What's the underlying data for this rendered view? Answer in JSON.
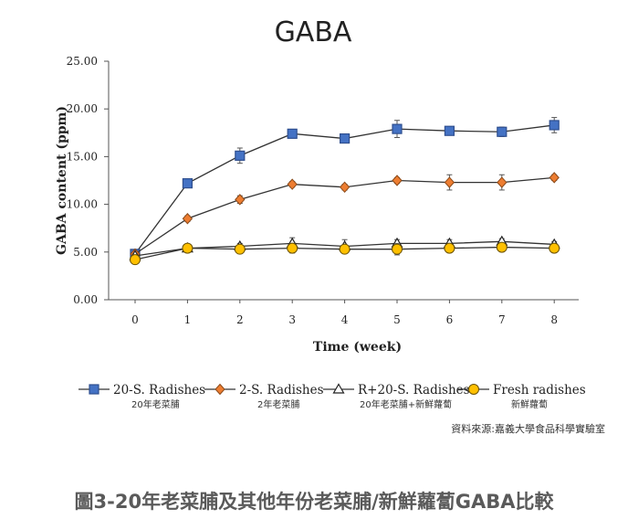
{
  "caption": "圖3-20年老菜脯及其他年份老菜脯/新鮮蘿蔔GABA比較",
  "chart_data": {
    "type": "line",
    "title": "GABA",
    "xlabel": "Time (week)",
    "ylabel": "GABA content (ppm)",
    "x": [
      0,
      1,
      2,
      3,
      4,
      5,
      6,
      7,
      8
    ],
    "x_tick_labels": [
      "0",
      "1",
      "2",
      "3",
      "4",
      "5",
      "6",
      "7",
      "8"
    ],
    "ylim": [
      0,
      25
    ],
    "y_tick_labels": [
      "0.00",
      "5.00",
      "10.00",
      "15.00",
      "20.00",
      "25.00"
    ],
    "y_ticks": [
      0,
      5,
      10,
      15,
      20,
      25
    ],
    "grid": false,
    "legend_position": "bottom",
    "series": [
      {
        "name": "20-S. Radishes",
        "sublabel": "20年老菜脯",
        "marker": "square",
        "color": "#4472c4",
        "values": [
          4.8,
          12.2,
          15.1,
          17.4,
          16.9,
          17.9,
          17.7,
          17.6,
          18.3
        ],
        "errors": [
          0.2,
          0.3,
          0.8,
          0.4,
          0.3,
          0.9,
          0.4,
          0.5,
          0.8
        ]
      },
      {
        "name": "2-S. Radishes",
        "sublabel": "2年老菜脯",
        "marker": "diamond",
        "color": "#ed7d31",
        "values": [
          4.8,
          8.5,
          10.5,
          12.1,
          11.8,
          12.5,
          12.3,
          12.3,
          12.8
        ],
        "errors": [
          0.2,
          0.3,
          0.4,
          0.3,
          0.3,
          0.3,
          0.8,
          0.8,
          0.3
        ]
      },
      {
        "name": "R+20-S. Radishes",
        "sublabel": "20年老菜脯+新鮮蘿蔔",
        "marker": "triangle",
        "color": "#7f7f7f",
        "values": [
          4.6,
          5.4,
          5.6,
          5.9,
          5.6,
          5.9,
          5.9,
          6.1,
          5.8
        ],
        "errors": [
          0.2,
          0.3,
          0.3,
          0.6,
          0.7,
          0.4,
          0.4,
          0.3,
          0.3
        ]
      },
      {
        "name": "Fresh radishes",
        "sublabel": "新鮮蘿蔔",
        "marker": "circle",
        "color": "#ffc000",
        "values": [
          4.2,
          5.4,
          5.3,
          5.4,
          5.3,
          5.3,
          5.4,
          5.5,
          5.4
        ],
        "errors": [
          0.2,
          0.3,
          0.3,
          0.5,
          0.4,
          0.6,
          0.4,
          0.3,
          0.3
        ]
      }
    ],
    "source_note": "資料來源:嘉義大學食品科學實驗室"
  }
}
